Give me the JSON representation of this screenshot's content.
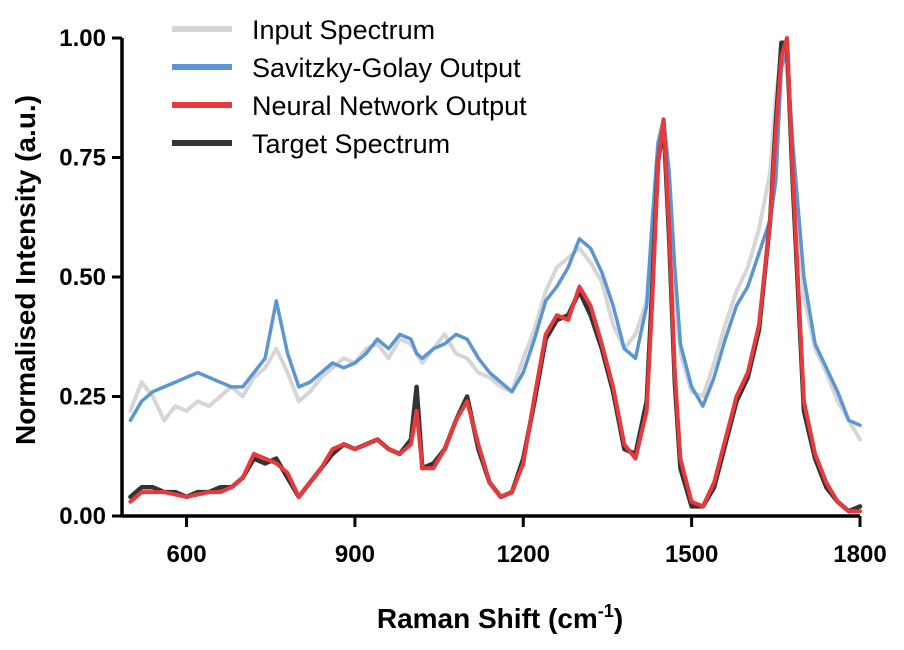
{
  "chart_data": {
    "type": "line",
    "xlabel": "Raman Shift (cm",
    "xlabel_sup": "-1",
    "xlabel_suffix": ")",
    "ylabel": "Normalised Intensity (a.u.)",
    "xlim": [
      485,
      1800
    ],
    "ylim": [
      0,
      1
    ],
    "xticks": [
      600,
      900,
      1200,
      1500,
      1800
    ],
    "xtick_labels": [
      "600",
      "900",
      "1200",
      "1500",
      "1800"
    ],
    "yticks": [
      0,
      0.25,
      0.5,
      0.75,
      1.0
    ],
    "ytick_labels": [
      "0.00",
      "0.25",
      "0.50",
      "0.75",
      "1.00"
    ],
    "grid": false,
    "legend_position": "top-left",
    "x": [
      500,
      520,
      540,
      560,
      580,
      600,
      620,
      640,
      660,
      680,
      700,
      720,
      740,
      760,
      780,
      800,
      820,
      840,
      860,
      880,
      900,
      920,
      940,
      960,
      980,
      1000,
      1010,
      1020,
      1040,
      1060,
      1080,
      1100,
      1120,
      1140,
      1160,
      1180,
      1200,
      1220,
      1240,
      1260,
      1280,
      1300,
      1320,
      1340,
      1360,
      1380,
      1400,
      1420,
      1430,
      1440,
      1450,
      1460,
      1470,
      1480,
      1500,
      1520,
      1540,
      1560,
      1580,
      1600,
      1620,
      1640,
      1650,
      1660,
      1670,
      1680,
      1700,
      1720,
      1740,
      1760,
      1780,
      1800
    ],
    "series": [
      {
        "name": "Input Spectrum",
        "color": "#d6d6d6",
        "values": [
          0.22,
          0.28,
          0.25,
          0.2,
          0.23,
          0.22,
          0.24,
          0.23,
          0.25,
          0.27,
          0.25,
          0.29,
          0.31,
          0.35,
          0.3,
          0.24,
          0.26,
          0.29,
          0.31,
          0.33,
          0.32,
          0.35,
          0.36,
          0.33,
          0.37,
          0.36,
          0.34,
          0.32,
          0.35,
          0.38,
          0.34,
          0.33,
          0.3,
          0.29,
          0.27,
          0.26,
          0.33,
          0.39,
          0.47,
          0.52,
          0.54,
          0.56,
          0.53,
          0.49,
          0.4,
          0.35,
          0.38,
          0.45,
          0.6,
          0.78,
          0.83,
          0.66,
          0.48,
          0.34,
          0.26,
          0.25,
          0.32,
          0.4,
          0.47,
          0.52,
          0.6,
          0.72,
          0.88,
          0.96,
          0.93,
          0.78,
          0.46,
          0.35,
          0.3,
          0.24,
          0.2,
          0.16
        ]
      },
      {
        "name": "Savitzky-Golay Output",
        "color": "#5b96d2",
        "values": [
          0.2,
          0.24,
          0.26,
          0.27,
          0.28,
          0.29,
          0.3,
          0.29,
          0.28,
          0.27,
          0.27,
          0.3,
          0.33,
          0.45,
          0.34,
          0.27,
          0.28,
          0.3,
          0.32,
          0.31,
          0.32,
          0.34,
          0.37,
          0.35,
          0.38,
          0.37,
          0.34,
          0.33,
          0.35,
          0.36,
          0.38,
          0.37,
          0.33,
          0.3,
          0.28,
          0.26,
          0.3,
          0.37,
          0.45,
          0.48,
          0.52,
          0.58,
          0.56,
          0.51,
          0.44,
          0.35,
          0.33,
          0.44,
          0.62,
          0.78,
          0.83,
          0.72,
          0.52,
          0.36,
          0.27,
          0.23,
          0.29,
          0.37,
          0.44,
          0.48,
          0.55,
          0.62,
          0.7,
          0.94,
          0.97,
          0.78,
          0.5,
          0.36,
          0.31,
          0.26,
          0.2,
          0.19
        ]
      },
      {
        "name": "Neural Network Output",
        "color": "#e8393d",
        "values": [
          0.03,
          0.05,
          0.05,
          0.05,
          0.045,
          0.04,
          0.045,
          0.05,
          0.05,
          0.06,
          0.08,
          0.13,
          0.12,
          0.11,
          0.09,
          0.04,
          0.07,
          0.1,
          0.14,
          0.15,
          0.14,
          0.15,
          0.16,
          0.14,
          0.13,
          0.15,
          0.22,
          0.1,
          0.1,
          0.14,
          0.2,
          0.24,
          0.15,
          0.07,
          0.04,
          0.05,
          0.11,
          0.25,
          0.38,
          0.42,
          0.41,
          0.48,
          0.44,
          0.36,
          0.27,
          0.15,
          0.12,
          0.22,
          0.45,
          0.74,
          0.83,
          0.6,
          0.3,
          0.12,
          0.03,
          0.02,
          0.07,
          0.16,
          0.25,
          0.3,
          0.4,
          0.62,
          0.8,
          0.96,
          1.0,
          0.72,
          0.24,
          0.13,
          0.07,
          0.03,
          0.01,
          0.01
        ]
      },
      {
        "name": "Target Spectrum",
        "color": "#333333",
        "values": [
          0.04,
          0.06,
          0.06,
          0.05,
          0.05,
          0.04,
          0.05,
          0.05,
          0.06,
          0.06,
          0.08,
          0.12,
          0.11,
          0.12,
          0.08,
          0.04,
          0.07,
          0.1,
          0.13,
          0.15,
          0.14,
          0.15,
          0.16,
          0.14,
          0.13,
          0.16,
          0.27,
          0.1,
          0.11,
          0.14,
          0.2,
          0.25,
          0.14,
          0.07,
          0.04,
          0.05,
          0.12,
          0.24,
          0.37,
          0.41,
          0.42,
          0.47,
          0.42,
          0.35,
          0.26,
          0.14,
          0.13,
          0.24,
          0.48,
          0.74,
          0.82,
          0.58,
          0.28,
          0.1,
          0.02,
          0.02,
          0.06,
          0.15,
          0.24,
          0.29,
          0.39,
          0.62,
          0.82,
          0.99,
          0.99,
          0.7,
          0.22,
          0.12,
          0.06,
          0.03,
          0.01,
          0.02
        ]
      }
    ],
    "draw_order": [
      0,
      1,
      3,
      2
    ]
  }
}
